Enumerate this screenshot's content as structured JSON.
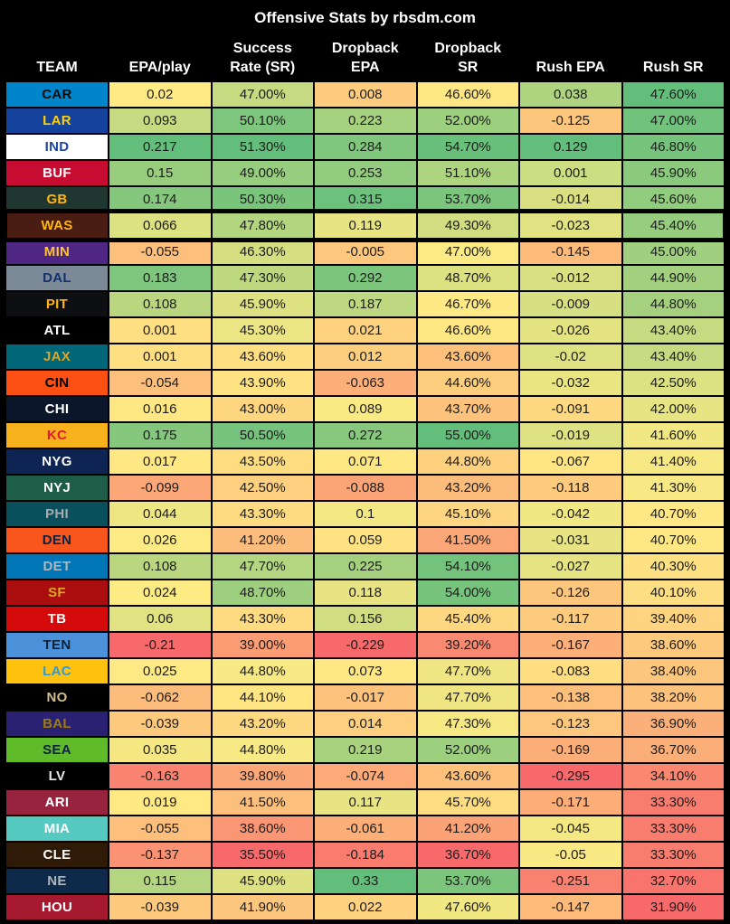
{
  "chart_data": {
    "type": "table",
    "title": "Offensive Stats by rbsdm.com",
    "legend_position": "none",
    "highlighted_team": "WAS",
    "color_scale": {
      "low": "#F8696B",
      "mid": "#FFEB84",
      "high": "#63BE7B",
      "midpoint": "median",
      "scope": "per-column"
    },
    "columns": [
      {
        "key": "team",
        "label": "TEAM"
      },
      {
        "key": "epa",
        "label": "EPA/play"
      },
      {
        "key": "sr",
        "label": "Success\nRate (SR)"
      },
      {
        "key": "db_epa",
        "label": "Dropback\nEPA"
      },
      {
        "key": "db_sr",
        "label": "Dropback\nSR"
      },
      {
        "key": "rush_epa",
        "label": "Rush EPA"
      },
      {
        "key": "rush_sr",
        "label": "Rush SR"
      }
    ],
    "rows": [
      {
        "team": "CAR",
        "team_bg": "#0085CA",
        "team_fg": "#0A0A0A",
        "epa": "0.02",
        "sr": "47.00%",
        "db_epa": "0.008",
        "db_sr": "46.60%",
        "rush_epa": "0.038",
        "rush_sr": "47.60%"
      },
      {
        "team": "LAR",
        "team_bg": "#14429D",
        "team_fg": "#FFD100",
        "epa": "0.093",
        "sr": "50.10%",
        "db_epa": "0.223",
        "db_sr": "52.00%",
        "rush_epa": "-0.125",
        "rush_sr": "47.00%"
      },
      {
        "team": "IND",
        "team_bg": "#FFFFFF",
        "team_fg": "#1D44A5",
        "epa": "0.217",
        "sr": "51.30%",
        "db_epa": "0.284",
        "db_sr": "54.70%",
        "rush_epa": "0.129",
        "rush_sr": "46.80%"
      },
      {
        "team": "BUF",
        "team_bg": "#C60C30",
        "team_fg": "#FFFFFF",
        "epa": "0.15",
        "sr": "49.00%",
        "db_epa": "0.253",
        "db_sr": "51.10%",
        "rush_epa": "0.001",
        "rush_sr": "45.90%"
      },
      {
        "team": "GB",
        "team_bg": "#203731",
        "team_fg": "#FFB612",
        "epa": "0.174",
        "sr": "50.30%",
        "db_epa": "0.315",
        "db_sr": "53.70%",
        "rush_epa": "-0.014",
        "rush_sr": "45.60%"
      },
      {
        "team": "WAS",
        "team_bg": "#4A1D13",
        "team_fg": "#FFB612",
        "epa": "0.066",
        "sr": "47.80%",
        "db_epa": "0.119",
        "db_sr": "49.30%",
        "rush_epa": "-0.023",
        "rush_sr": "45.40%"
      },
      {
        "team": "MIN",
        "team_bg": "#4F2683",
        "team_fg": "#FFC62F",
        "epa": "-0.055",
        "sr": "46.30%",
        "db_epa": "-0.005",
        "db_sr": "47.00%",
        "rush_epa": "-0.145",
        "rush_sr": "45.00%"
      },
      {
        "team": "DAL",
        "team_bg": "#7C8A97",
        "team_fg": "#13316B",
        "epa": "0.183",
        "sr": "47.30%",
        "db_epa": "0.292",
        "db_sr": "48.70%",
        "rush_epa": "-0.012",
        "rush_sr": "44.90%"
      },
      {
        "team": "PIT",
        "team_bg": "#0D0F12",
        "team_fg": "#FFB612",
        "epa": "0.108",
        "sr": "45.90%",
        "db_epa": "0.187",
        "db_sr": "46.70%",
        "rush_epa": "-0.009",
        "rush_sr": "44.80%"
      },
      {
        "team": "ATL",
        "team_bg": "#000000",
        "team_fg": "#FFFFFF",
        "epa": "0.001",
        "sr": "45.30%",
        "db_epa": "0.021",
        "db_sr": "46.60%",
        "rush_epa": "-0.026",
        "rush_sr": "43.40%"
      },
      {
        "team": "JAX",
        "team_bg": "#006778",
        "team_fg": "#DFA422",
        "epa": "0.001",
        "sr": "43.60%",
        "db_epa": "0.012",
        "db_sr": "43.60%",
        "rush_epa": "-0.02",
        "rush_sr": "43.40%"
      },
      {
        "team": "CIN",
        "team_bg": "#FB4F14",
        "team_fg": "#000000",
        "epa": "-0.054",
        "sr": "43.90%",
        "db_epa": "-0.063",
        "db_sr": "44.60%",
        "rush_epa": "-0.032",
        "rush_sr": "42.50%"
      },
      {
        "team": "CHI",
        "team_bg": "#0B162A",
        "team_fg": "#FFFFFF",
        "epa": "0.016",
        "sr": "43.00%",
        "db_epa": "0.089",
        "db_sr": "43.70%",
        "rush_epa": "-0.091",
        "rush_sr": "42.00%"
      },
      {
        "team": "KC",
        "team_bg": "#F7B11C",
        "team_fg": "#E31837",
        "epa": "0.175",
        "sr": "50.50%",
        "db_epa": "0.272",
        "db_sr": "55.00%",
        "rush_epa": "-0.019",
        "rush_sr": "41.60%"
      },
      {
        "team": "NYG",
        "team_bg": "#0E2453",
        "team_fg": "#FFFFFF",
        "epa": "0.017",
        "sr": "43.50%",
        "db_epa": "0.071",
        "db_sr": "44.80%",
        "rush_epa": "-0.067",
        "rush_sr": "41.40%"
      },
      {
        "team": "NYJ",
        "team_bg": "#1E5E48",
        "team_fg": "#FFFFFF",
        "epa": "-0.099",
        "sr": "42.50%",
        "db_epa": "-0.088",
        "db_sr": "43.20%",
        "rush_epa": "-0.118",
        "rush_sr": "41.30%"
      },
      {
        "team": "PHI",
        "team_bg": "#0A4F5C",
        "team_fg": "#A5ACAF",
        "epa": "0.044",
        "sr": "43.30%",
        "db_epa": "0.1",
        "db_sr": "45.10%",
        "rush_epa": "-0.042",
        "rush_sr": "40.70%"
      },
      {
        "team": "DEN",
        "team_bg": "#F9561E",
        "team_fg": "#0A2343",
        "epa": "0.026",
        "sr": "41.20%",
        "db_epa": "0.059",
        "db_sr": "41.50%",
        "rush_epa": "-0.031",
        "rush_sr": "40.70%"
      },
      {
        "team": "DET",
        "team_bg": "#0076B6",
        "team_fg": "#B0B7BC",
        "epa": "0.108",
        "sr": "47.70%",
        "db_epa": "0.225",
        "db_sr": "54.10%",
        "rush_epa": "-0.027",
        "rush_sr": "40.30%"
      },
      {
        "team": "SF",
        "team_bg": "#AA0E0E",
        "team_fg": "#D9A927",
        "epa": "0.024",
        "sr": "48.70%",
        "db_epa": "0.118",
        "db_sr": "54.00%",
        "rush_epa": "-0.126",
        "rush_sr": "40.10%"
      },
      {
        "team": "TB",
        "team_bg": "#D50A0A",
        "team_fg": "#FFFFFF",
        "epa": "0.06",
        "sr": "43.30%",
        "db_epa": "0.156",
        "db_sr": "45.40%",
        "rush_epa": "-0.117",
        "rush_sr": "39.40%"
      },
      {
        "team": "TEN",
        "team_bg": "#4B92DB",
        "team_fg": "#0C2340",
        "epa": "-0.21",
        "sr": "39.00%",
        "db_epa": "-0.229",
        "db_sr": "39.20%",
        "rush_epa": "-0.167",
        "rush_sr": "38.60%"
      },
      {
        "team": "LAC",
        "team_bg": "#FFC20E",
        "team_fg": "#2B9CDF",
        "epa": "0.025",
        "sr": "44.80%",
        "db_epa": "0.073",
        "db_sr": "47.70%",
        "rush_epa": "-0.083",
        "rush_sr": "38.40%"
      },
      {
        "team": "NO",
        "team_bg": "#000000",
        "team_fg": "#D3BC8D",
        "epa": "-0.062",
        "sr": "44.10%",
        "db_epa": "-0.017",
        "db_sr": "47.70%",
        "rush_epa": "-0.138",
        "rush_sr": "38.20%"
      },
      {
        "team": "BAL",
        "team_bg": "#2B2173",
        "team_fg": "#9E7C0C",
        "epa": "-0.039",
        "sr": "43.20%",
        "db_epa": "0.014",
        "db_sr": "47.30%",
        "rush_epa": "-0.123",
        "rush_sr": "36.90%"
      },
      {
        "team": "SEA",
        "team_bg": "#5FBB2A",
        "team_fg": "#0C2340",
        "epa": "0.035",
        "sr": "44.80%",
        "db_epa": "0.219",
        "db_sr": "52.00%",
        "rush_epa": "-0.169",
        "rush_sr": "36.70%"
      },
      {
        "team": "LV",
        "team_bg": "#000000",
        "team_fg": "#E6E8EA",
        "epa": "-0.163",
        "sr": "39.80%",
        "db_epa": "-0.074",
        "db_sr": "43.60%",
        "rush_epa": "-0.295",
        "rush_sr": "34.10%"
      },
      {
        "team": "ARI",
        "team_bg": "#97233F",
        "team_fg": "#FFFFFF",
        "epa": "0.019",
        "sr": "41.50%",
        "db_epa": "0.117",
        "db_sr": "45.70%",
        "rush_epa": "-0.171",
        "rush_sr": "33.30%"
      },
      {
        "team": "MIA",
        "team_bg": "#56C9C0",
        "team_fg": "#FFFFFF",
        "epa": "-0.055",
        "sr": "38.60%",
        "db_epa": "-0.061",
        "db_sr": "41.20%",
        "rush_epa": "-0.045",
        "rush_sr": "33.30%"
      },
      {
        "team": "CLE",
        "team_bg": "#2E1A07",
        "team_fg": "#FFFFFF",
        "epa": "-0.137",
        "sr": "35.50%",
        "db_epa": "-0.184",
        "db_sr": "36.70%",
        "rush_epa": "-0.05",
        "rush_sr": "33.30%"
      },
      {
        "team": "NE",
        "team_bg": "#0E2A4A",
        "team_fg": "#B0B7BC",
        "epa": "0.115",
        "sr": "45.90%",
        "db_epa": "0.33",
        "db_sr": "53.70%",
        "rush_epa": "-0.251",
        "rush_sr": "32.70%"
      },
      {
        "team": "HOU",
        "team_bg": "#A6192E",
        "team_fg": "#FFFFFF",
        "epa": "-0.039",
        "sr": "41.90%",
        "db_epa": "0.022",
        "db_sr": "47.60%",
        "rush_epa": "-0.147",
        "rush_sr": "31.90%"
      }
    ]
  }
}
